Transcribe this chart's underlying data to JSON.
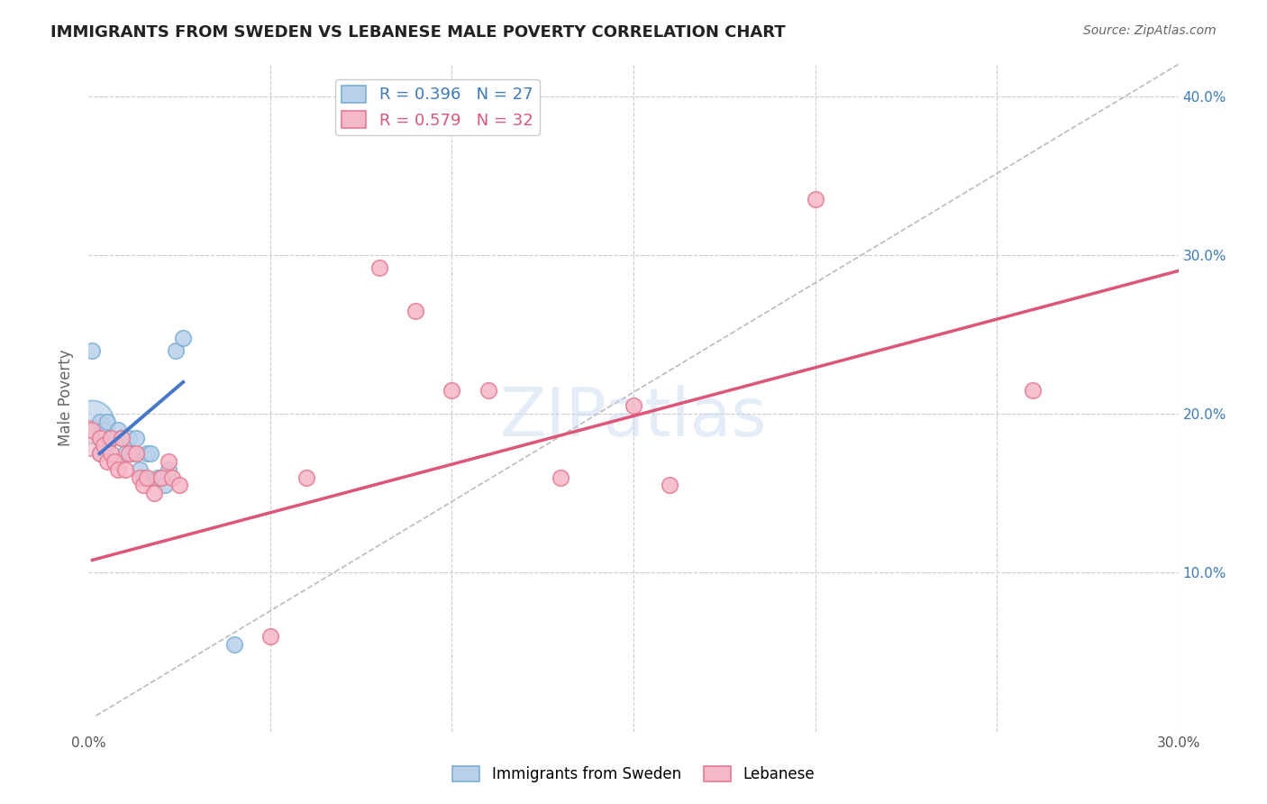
{
  "title": "IMMIGRANTS FROM SWEDEN VS LEBANESE MALE POVERTY CORRELATION CHART",
  "source": "Source: ZipAtlas.com",
  "ylabel": "Male Poverty",
  "xlim": [
    0.0,
    0.3
  ],
  "ylim": [
    0.0,
    0.42
  ],
  "xticks": [
    0.0,
    0.05,
    0.1,
    0.15,
    0.2,
    0.25,
    0.3
  ],
  "xtick_labels": [
    "0.0%",
    "",
    "",
    "",
    "",
    "",
    "30.0%"
  ],
  "ytick_labels_right": [
    "",
    "10.0%",
    "20.0%",
    "30.0%",
    "40.0%"
  ],
  "legend_entries": [
    {
      "label": "R = 0.396   N = 27"
    },
    {
      "label": "R = 0.579   N = 32"
    }
  ],
  "watermark": "ZIPatlas",
  "sweden_color": "#b8d0ea",
  "lebanon_color": "#f5b8c8",
  "sweden_edge": "#7aafd4",
  "lebanon_edge": "#e87a90",
  "sweden_line_color": "#4477cc",
  "lebanon_line_color": "#dd5577",
  "diagonal_color": "#bbbbbb",
  "background_color": "#ffffff",
  "grid_color": "#cccccc",
  "sweden_points": [
    [
      0.001,
      0.24
    ],
    [
      0.003,
      0.195
    ],
    [
      0.003,
      0.185
    ],
    [
      0.003,
      0.175
    ],
    [
      0.004,
      0.19
    ],
    [
      0.004,
      0.18
    ],
    [
      0.005,
      0.195
    ],
    [
      0.005,
      0.18
    ],
    [
      0.006,
      0.185
    ],
    [
      0.007,
      0.17
    ],
    [
      0.008,
      0.19
    ],
    [
      0.009,
      0.185
    ],
    [
      0.01,
      0.175
    ],
    [
      0.011,
      0.185
    ],
    [
      0.012,
      0.175
    ],
    [
      0.013,
      0.185
    ],
    [
      0.014,
      0.165
    ],
    [
      0.015,
      0.16
    ],
    [
      0.016,
      0.175
    ],
    [
      0.017,
      0.175
    ],
    [
      0.019,
      0.16
    ],
    [
      0.02,
      0.16
    ],
    [
      0.021,
      0.155
    ],
    [
      0.022,
      0.165
    ],
    [
      0.024,
      0.24
    ],
    [
      0.026,
      0.248
    ],
    [
      0.04,
      0.055
    ]
  ],
  "lebanon_points": [
    [
      0.001,
      0.19
    ],
    [
      0.003,
      0.185
    ],
    [
      0.003,
      0.175
    ],
    [
      0.004,
      0.18
    ],
    [
      0.005,
      0.17
    ],
    [
      0.006,
      0.185
    ],
    [
      0.006,
      0.175
    ],
    [
      0.007,
      0.17
    ],
    [
      0.008,
      0.165
    ],
    [
      0.009,
      0.185
    ],
    [
      0.01,
      0.165
    ],
    [
      0.011,
      0.175
    ],
    [
      0.013,
      0.175
    ],
    [
      0.014,
      0.16
    ],
    [
      0.015,
      0.155
    ],
    [
      0.016,
      0.16
    ],
    [
      0.018,
      0.15
    ],
    [
      0.02,
      0.16
    ],
    [
      0.022,
      0.17
    ],
    [
      0.023,
      0.16
    ],
    [
      0.025,
      0.155
    ],
    [
      0.05,
      0.06
    ],
    [
      0.06,
      0.16
    ],
    [
      0.08,
      0.292
    ],
    [
      0.09,
      0.265
    ],
    [
      0.1,
      0.215
    ],
    [
      0.11,
      0.215
    ],
    [
      0.13,
      0.16
    ],
    [
      0.15,
      0.205
    ],
    [
      0.16,
      0.155
    ],
    [
      0.2,
      0.335
    ],
    [
      0.26,
      0.215
    ]
  ],
  "large_sweden_bubble": [
    0.001,
    0.195
  ],
  "large_lebanon_bubble": [
    0.001,
    0.185
  ],
  "sweden_line": [
    [
      0.003,
      0.175
    ],
    [
      0.026,
      0.22
    ]
  ],
  "lebanon_line": [
    [
      0.001,
      0.108
    ],
    [
      0.3,
      0.29
    ]
  ],
  "diagonal_line": [
    [
      0.002,
      0.01
    ],
    [
      0.3,
      0.42
    ]
  ]
}
